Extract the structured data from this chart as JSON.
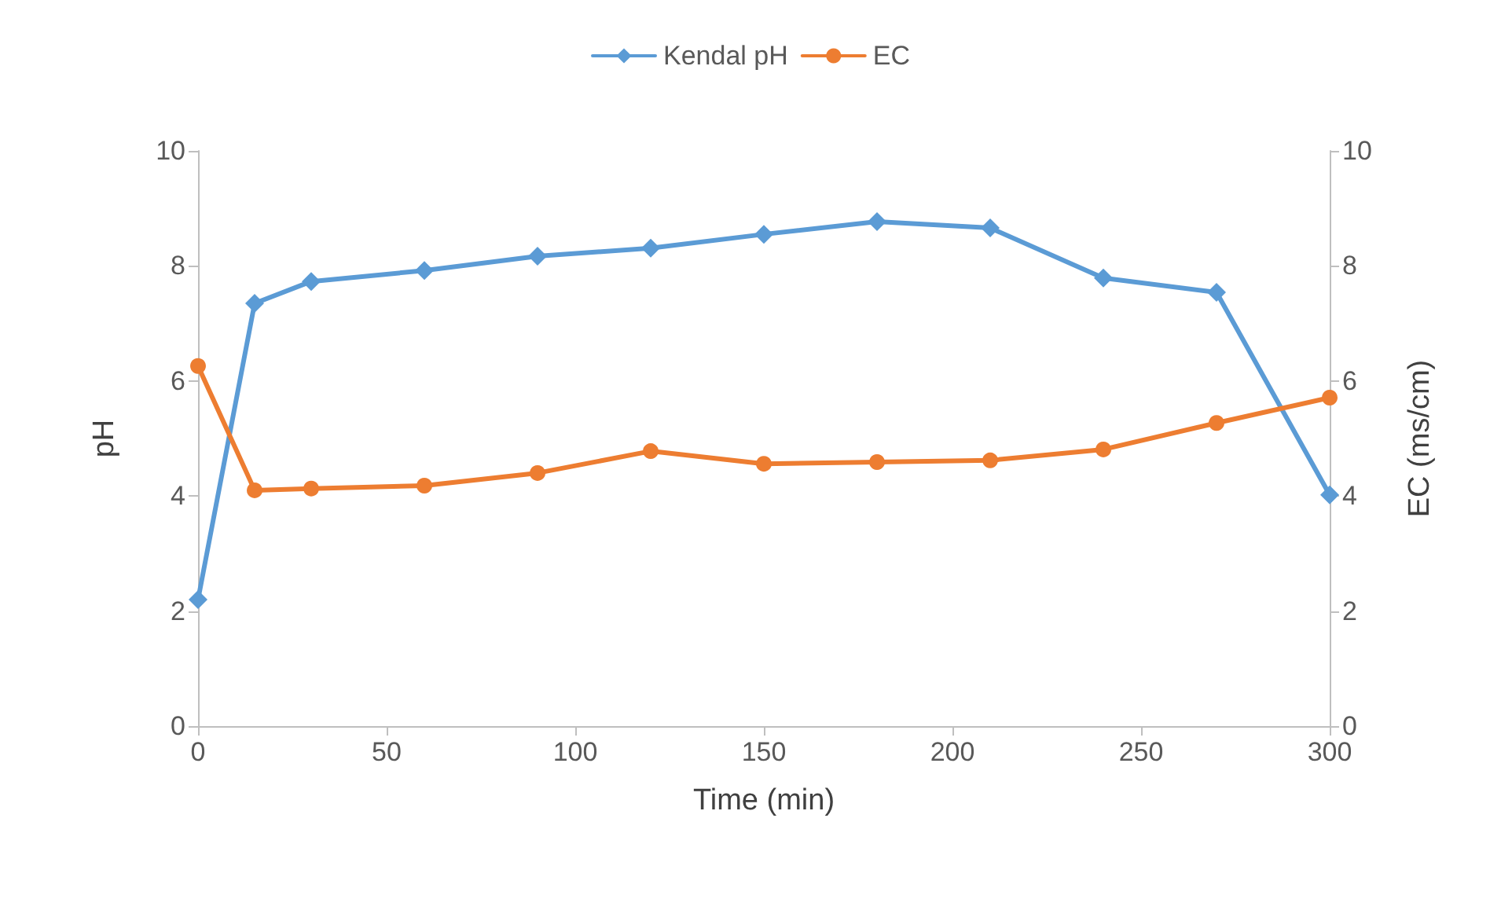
{
  "chart_data": {
    "type": "line",
    "xlabel": "Time (min)",
    "ylabel": "pH",
    "y2label": "EC (ms/cm)",
    "x": [
      0,
      15,
      30,
      60,
      90,
      120,
      150,
      180,
      210,
      240,
      270,
      300
    ],
    "series": [
      {
        "name": "Kendal pH",
        "color": "#5b9bd5",
        "marker": "diamond",
        "values": [
          2.2,
          7.35,
          7.73,
          7.92,
          8.17,
          8.31,
          8.55,
          8.77,
          8.66,
          7.79,
          7.54,
          4.02
        ]
      },
      {
        "name": "EC",
        "color": "#ed7d31",
        "marker": "circle",
        "axis": "y2",
        "values": [
          6.26,
          4.1,
          4.13,
          4.18,
          4.4,
          4.78,
          4.56,
          4.59,
          4.62,
          4.81,
          5.27,
          5.71
        ]
      }
    ],
    "xlim": [
      0,
      300
    ],
    "xticks": [
      0,
      50,
      100,
      150,
      200,
      250,
      300
    ],
    "ylim": [
      0,
      10
    ],
    "yticks": [
      0,
      2,
      4,
      6,
      8,
      10
    ],
    "y2lim": [
      0,
      10
    ],
    "y2ticks": [
      0,
      2,
      4,
      6,
      8,
      10
    ],
    "grid": false,
    "legend": "top",
    "line_style": "solid"
  }
}
